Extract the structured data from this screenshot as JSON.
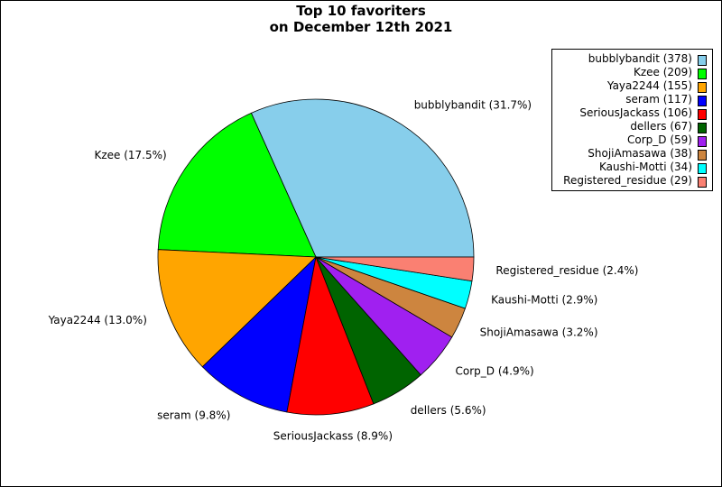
{
  "chart_data": {
    "type": "pie",
    "title": "Top 10 favoriters",
    "subtitle": "on December 12th 2021",
    "start_angle_deg": 0,
    "direction": "counterclockwise",
    "legend_position": "top-right",
    "slices": [
      {
        "name": "bubblybandit",
        "value": 378,
        "percent_label": "31.7%",
        "color": "#87ceeb"
      },
      {
        "name": "Kzee",
        "value": 209,
        "percent_label": "17.5%",
        "color": "#00ff00"
      },
      {
        "name": "Yaya2244",
        "value": 155,
        "percent_label": "13.0%",
        "color": "#ffa500"
      },
      {
        "name": "seram",
        "value": 117,
        "percent_label": "9.8%",
        "color": "#0000ff"
      },
      {
        "name": "SeriousJackass",
        "value": 106,
        "percent_label": "8.9%",
        "color": "#ff0000"
      },
      {
        "name": "dellers",
        "value": 67,
        "percent_label": "5.6%",
        "color": "#006400"
      },
      {
        "name": "Corp_D",
        "value": 59,
        "percent_label": "4.9%",
        "color": "#a020f0"
      },
      {
        "name": "ShojiAmasawa",
        "value": 38,
        "percent_label": "3.2%",
        "color": "#cd853f"
      },
      {
        "name": "Kaushi-Motti",
        "value": 34,
        "percent_label": "2.9%",
        "color": "#00ffff"
      },
      {
        "name": "Registered_residue",
        "value": 29,
        "percent_label": "2.4%",
        "color": "#fa8072"
      }
    ]
  }
}
